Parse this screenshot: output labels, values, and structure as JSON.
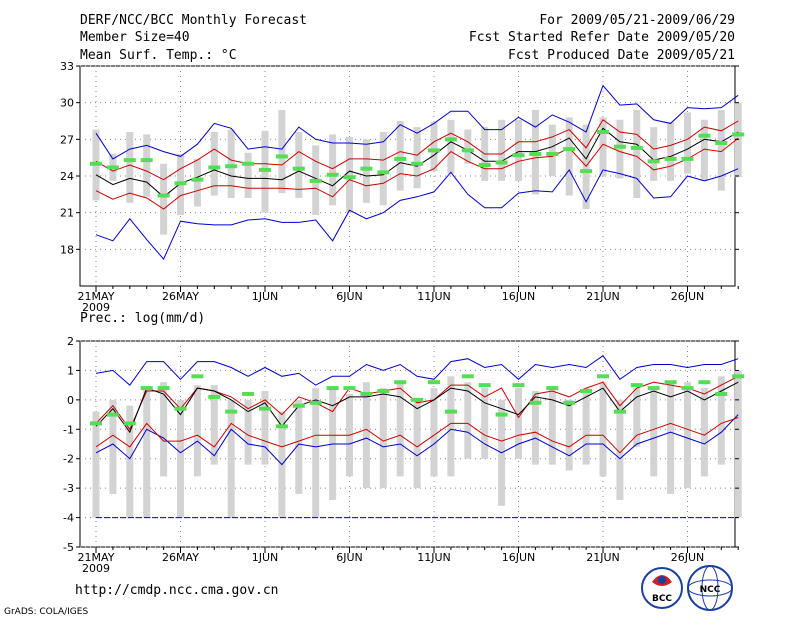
{
  "header": {
    "title": "DERF/NCC/BCC Monthly Forecast",
    "member_size": "Member Size=40",
    "variable": "Mean Surf. Temp.: °C",
    "period": "For 2009/05/21-2009/06/29",
    "fcst_started": "Fcst Started Refer Date 2009/05/20",
    "fcst_produced": "Fcst Produced Date 2009/05/21"
  },
  "footer": {
    "url": "http://cmdp.ncc.cma.gov.cn",
    "grads": "GrADS: COLA/IGES",
    "logo_bcc": "BCC",
    "logo_ncc": "NCC"
  },
  "colors": {
    "bar": "#d3d3d3",
    "max": "#0000cc",
    "spread": "#cc0000",
    "mean": "#000000",
    "obs": "#55dd55",
    "grid": "#888888"
  },
  "chart_data": [
    {
      "type": "line",
      "title": "Mean Surf. Temp.: °C",
      "x_labels": [
        "21MAY",
        "26MAY",
        "1JUN",
        "6JUN",
        "11JUN",
        "16JUN",
        "21JUN",
        "26JUN"
      ],
      "x_year": "2009",
      "ylim": [
        15,
        33
      ],
      "yticks": [
        "33",
        "30",
        "27",
        "24",
        "21",
        "18"
      ],
      "ytick_values": [
        33,
        30,
        27,
        24,
        21,
        18
      ],
      "grid": true,
      "series": [
        {
          "name": "max",
          "values": [
            19.2,
            18.7,
            20.5,
            18.8,
            17.2,
            20.3,
            20.1,
            20.0,
            20.0,
            20.4,
            20.5,
            20.2,
            20.2,
            20.4,
            18.7,
            21.2,
            20.5,
            21.0,
            22.0,
            22.3,
            22.7,
            24.3,
            22.5,
            21.4,
            21.4,
            22.6,
            22.8,
            22.7,
            24.5,
            21.9,
            24.5,
            24.2,
            23.8,
            22.2,
            22.3,
            24.0,
            23.6,
            24.0,
            24.6
          ]
        },
        {
          "name": "spread_low",
          "values": [
            22.8,
            22.1,
            22.6,
            22.2,
            21.3,
            22.4,
            22.8,
            23.2,
            23.2,
            23.0,
            23.0,
            23.0,
            22.9,
            23.0,
            22.3,
            23.7,
            23.2,
            23.4,
            24.2,
            24.0,
            24.6,
            26.0,
            25.2,
            24.6,
            24.6,
            25.2,
            25.5,
            25.6,
            26.3,
            24.8,
            26.6,
            26.0,
            25.6,
            24.5,
            24.8,
            25.4,
            26.2,
            26.0,
            27.1
          ]
        },
        {
          "name": "mean",
          "values": [
            24.1,
            23.3,
            23.8,
            23.5,
            22.3,
            23.4,
            23.9,
            24.5,
            24.0,
            23.8,
            23.8,
            23.7,
            24.4,
            23.8,
            23.2,
            24.4,
            24.0,
            24.1,
            25.1,
            24.8,
            25.7,
            26.8,
            26.1,
            25.2,
            25.2,
            26.0,
            26.0,
            26.4,
            27.1,
            25.4,
            27.9,
            26.8,
            26.6,
            25.3,
            25.6,
            26.2,
            27.0,
            26.8,
            27.6
          ]
        },
        {
          "name": "spread_high",
          "values": [
            25.2,
            24.4,
            24.9,
            24.4,
            23.7,
            24.6,
            25.3,
            26.2,
            25.3,
            25.0,
            25.0,
            24.9,
            26.0,
            25.2,
            24.6,
            25.4,
            25.4,
            25.3,
            26.0,
            25.7,
            26.8,
            27.5,
            26.8,
            25.8,
            25.8,
            26.8,
            26.8,
            27.2,
            27.8,
            26.3,
            28.6,
            27.6,
            27.4,
            26.2,
            26.5,
            27.0,
            28.0,
            27.7,
            28.5
          ]
        },
        {
          "name": "min",
          "values": [
            27.5,
            25.4,
            26.2,
            26.5,
            26.0,
            25.6,
            26.6,
            28.3,
            27.9,
            26.2,
            26.4,
            26.2,
            28.0,
            27.0,
            26.7,
            26.7,
            26.6,
            26.8,
            28.2,
            27.5,
            28.3,
            29.3,
            29.3,
            27.8,
            27.8,
            28.8,
            28.0,
            29.0,
            28.4,
            27.6,
            31.4,
            29.8,
            29.9,
            28.6,
            28.3,
            29.6,
            29.5,
            29.6,
            30.6
          ]
        },
        {
          "name": "obs",
          "values": [
            25.0,
            24.7,
            25.3,
            25.3,
            22.4,
            23.4,
            23.7,
            24.7,
            24.8,
            25.0,
            24.5,
            25.6,
            24.6,
            23.6,
            24.1,
            23.9,
            24.6,
            24.3,
            25.4,
            25.0,
            26.1,
            27.0,
            26.1,
            24.9,
            25.1,
            25.7,
            25.8,
            25.8,
            26.2,
            24.4,
            27.6,
            26.4,
            26.3,
            25.2,
            25.4,
            25.4,
            27.3,
            26.7,
            27.4
          ]
        },
        {
          "name": "bar_low",
          "values": [
            22,
            23.6,
            21.8,
            22.3,
            19.2,
            20.8,
            21.5,
            22.4,
            22.2,
            22.2,
            21.0,
            22.6,
            22.2,
            20.8,
            21.6,
            21.0,
            21.8,
            21.6,
            22.8,
            23.0,
            24.4,
            24.2,
            25.0,
            23.6,
            23.6,
            23.6,
            22.5,
            24.0,
            22.4,
            21.3,
            24.0,
            23.8,
            22.2,
            23.6,
            23.6,
            24.2,
            23.6,
            22.8,
            23.9
          ]
        },
        {
          "name": "bar_high",
          "values": [
            27.8,
            25.8,
            27.6,
            27.4,
            25.0,
            25.8,
            25.4,
            27.6,
            27.8,
            25.9,
            27.7,
            29.4,
            27.6,
            26.5,
            27.4,
            27.2,
            27.0,
            27.6,
            28.5,
            28.0,
            28.4,
            28.6,
            27.8,
            28.0,
            28.6,
            28.6,
            29.4,
            28.2,
            28.8,
            28.2,
            28.8,
            28.6,
            29.4,
            28.0,
            28.4,
            29.2,
            28.6,
            29.4,
            30.0
          ]
        }
      ]
    },
    {
      "type": "line",
      "title": "Prec.: log(mm/d)",
      "x_labels": [
        "21MAY",
        "26MAY",
        "1JUN",
        "6JUN",
        "11JUN",
        "16JUN",
        "21JUN",
        "26JUN"
      ],
      "x_year": "2009",
      "ylim": [
        -5,
        2
      ],
      "yticks": [
        "2",
        "1",
        "0",
        "-1",
        "-2",
        "-3",
        "-4",
        "-5"
      ],
      "ytick_values": [
        2,
        1,
        0,
        -1,
        -2,
        -3,
        -4,
        -5
      ],
      "grid": true,
      "reference_line": -4,
      "series": [
        {
          "name": "max",
          "values": [
            0.9,
            1.0,
            0.5,
            1.3,
            1.3,
            0.7,
            1.3,
            1.3,
            1.1,
            0.8,
            1.1,
            0.8,
            0.9,
            0.5,
            0.8,
            0.8,
            1.2,
            1.0,
            1.2,
            0.8,
            0.7,
            1.3,
            1.4,
            1.1,
            1.2,
            0.7,
            1.2,
            1.1,
            1.2,
            1.1,
            1.5,
            0.7,
            1.1,
            1.2,
            1.2,
            1.1,
            1.2,
            1.2,
            1.4
          ]
        },
        {
          "name": "spread_high",
          "values": [
            -0.8,
            -0.2,
            -1.0,
            0.3,
            0.3,
            -0.3,
            0.4,
            0.3,
            0.1,
            -0.3,
            0.0,
            -0.5,
            0.1,
            -0.1,
            -0.4,
            0.4,
            0.2,
            0.3,
            0.4,
            -0.1,
            0.0,
            0.5,
            0.5,
            0.1,
            0.4,
            -0.6,
            0.2,
            0.3,
            0.1,
            0.4,
            0.6,
            -0.2,
            0.4,
            0.6,
            0.5,
            0.4,
            0.2,
            0.5,
            0.8
          ]
        },
        {
          "name": "mean",
          "values": [
            -0.9,
            -0.3,
            -1.1,
            0.4,
            0.2,
            -0.5,
            0.4,
            0.3,
            0.0,
            -0.4,
            -0.1,
            -0.9,
            -0.2,
            0.0,
            -0.2,
            0.1,
            0.1,
            0.2,
            0.1,
            -0.3,
            0.0,
            0.4,
            0.3,
            -0.1,
            -0.3,
            -0.5,
            0.1,
            0.0,
            -0.2,
            0.1,
            0.4,
            -0.4,
            0.1,
            0.3,
            0.1,
            0.3,
            0.0,
            0.3,
            0.6
          ]
        },
        {
          "name": "spread_low",
          "values": [
            -1.6,
            -1.2,
            -1.6,
            -0.8,
            -1.4,
            -1.4,
            -1.2,
            -1.6,
            -0.8,
            -1.2,
            -1.4,
            -1.6,
            -1.4,
            -1.2,
            -1.2,
            -1.2,
            -1.0,
            -1.4,
            -1.2,
            -1.6,
            -1.2,
            -0.8,
            -0.8,
            -1.2,
            -1.4,
            -1.2,
            -1.1,
            -1.4,
            -1.6,
            -1.2,
            -1.2,
            -1.8,
            -1.2,
            -1.0,
            -0.8,
            -1.0,
            -1.2,
            -0.8,
            -0.6
          ]
        },
        {
          "name": "min",
          "values": [
            -1.8,
            -1.5,
            -2.0,
            -1.0,
            -1.3,
            -1.8,
            -1.4,
            -1.9,
            -1.0,
            -1.5,
            -1.6,
            -2.2,
            -1.5,
            -1.6,
            -1.5,
            -1.5,
            -1.3,
            -1.6,
            -1.5,
            -1.9,
            -1.5,
            -1.0,
            -1.1,
            -1.5,
            -1.8,
            -1.5,
            -1.3,
            -1.6,
            -1.9,
            -1.5,
            -1.5,
            -2.0,
            -1.5,
            -1.3,
            -1.1,
            -1.3,
            -1.5,
            -1.1,
            -0.5
          ]
        },
        {
          "name": "obs",
          "values": [
            -0.8,
            -0.5,
            -0.8,
            0.4,
            0.4,
            -0.3,
            0.8,
            0.1,
            -0.4,
            0.2,
            -0.3,
            -0.9,
            -0.2,
            -0.1,
            0.4,
            0.4,
            0.2,
            0.3,
            0.6,
            0.0,
            0.6,
            -0.4,
            0.8,
            0.5,
            -0.5,
            0.5,
            -0.1,
            0.4,
            -0.1,
            0.3,
            0.8,
            -0.4,
            0.5,
            0.4,
            0.6,
            0.4,
            0.6,
            0.2,
            0.8
          ]
        },
        {
          "name": "bar_low",
          "values": [
            -4.0,
            -3.2,
            -4.0,
            -4.0,
            -2.6,
            -4.0,
            -2.6,
            -2.2,
            -4.0,
            -2.2,
            -2.2,
            -4.0,
            -3.2,
            -4.0,
            -3.4,
            -2.6,
            -3.0,
            -3.0,
            -2.6,
            -3.0,
            -2.6,
            -2.6,
            -2.0,
            -2.0,
            -3.6,
            -2.0,
            -2.2,
            -2.2,
            -2.4,
            -2.2,
            -2.6,
            -3.4,
            -1.6,
            -2.6,
            -3.2,
            -3.0,
            -2.6,
            -2.2,
            -4.0
          ]
        },
        {
          "name": "bar_high",
          "values": [
            -0.4,
            0.0,
            -0.2,
            0.4,
            0.6,
            0.0,
            0.5,
            0.5,
            0.0,
            0.0,
            0.3,
            -0.4,
            0.0,
            0.4,
            0.4,
            0.2,
            0.6,
            0.4,
            0.6,
            0.0,
            0.4,
            0.8,
            0.6,
            0.4,
            0.0,
            0.4,
            0.3,
            0.4,
            0.0,
            0.4,
            0.6,
            0.0,
            0.4,
            0.4,
            0.6,
            0.6,
            0.4,
            0.8,
            1.0
          ]
        }
      ]
    }
  ]
}
